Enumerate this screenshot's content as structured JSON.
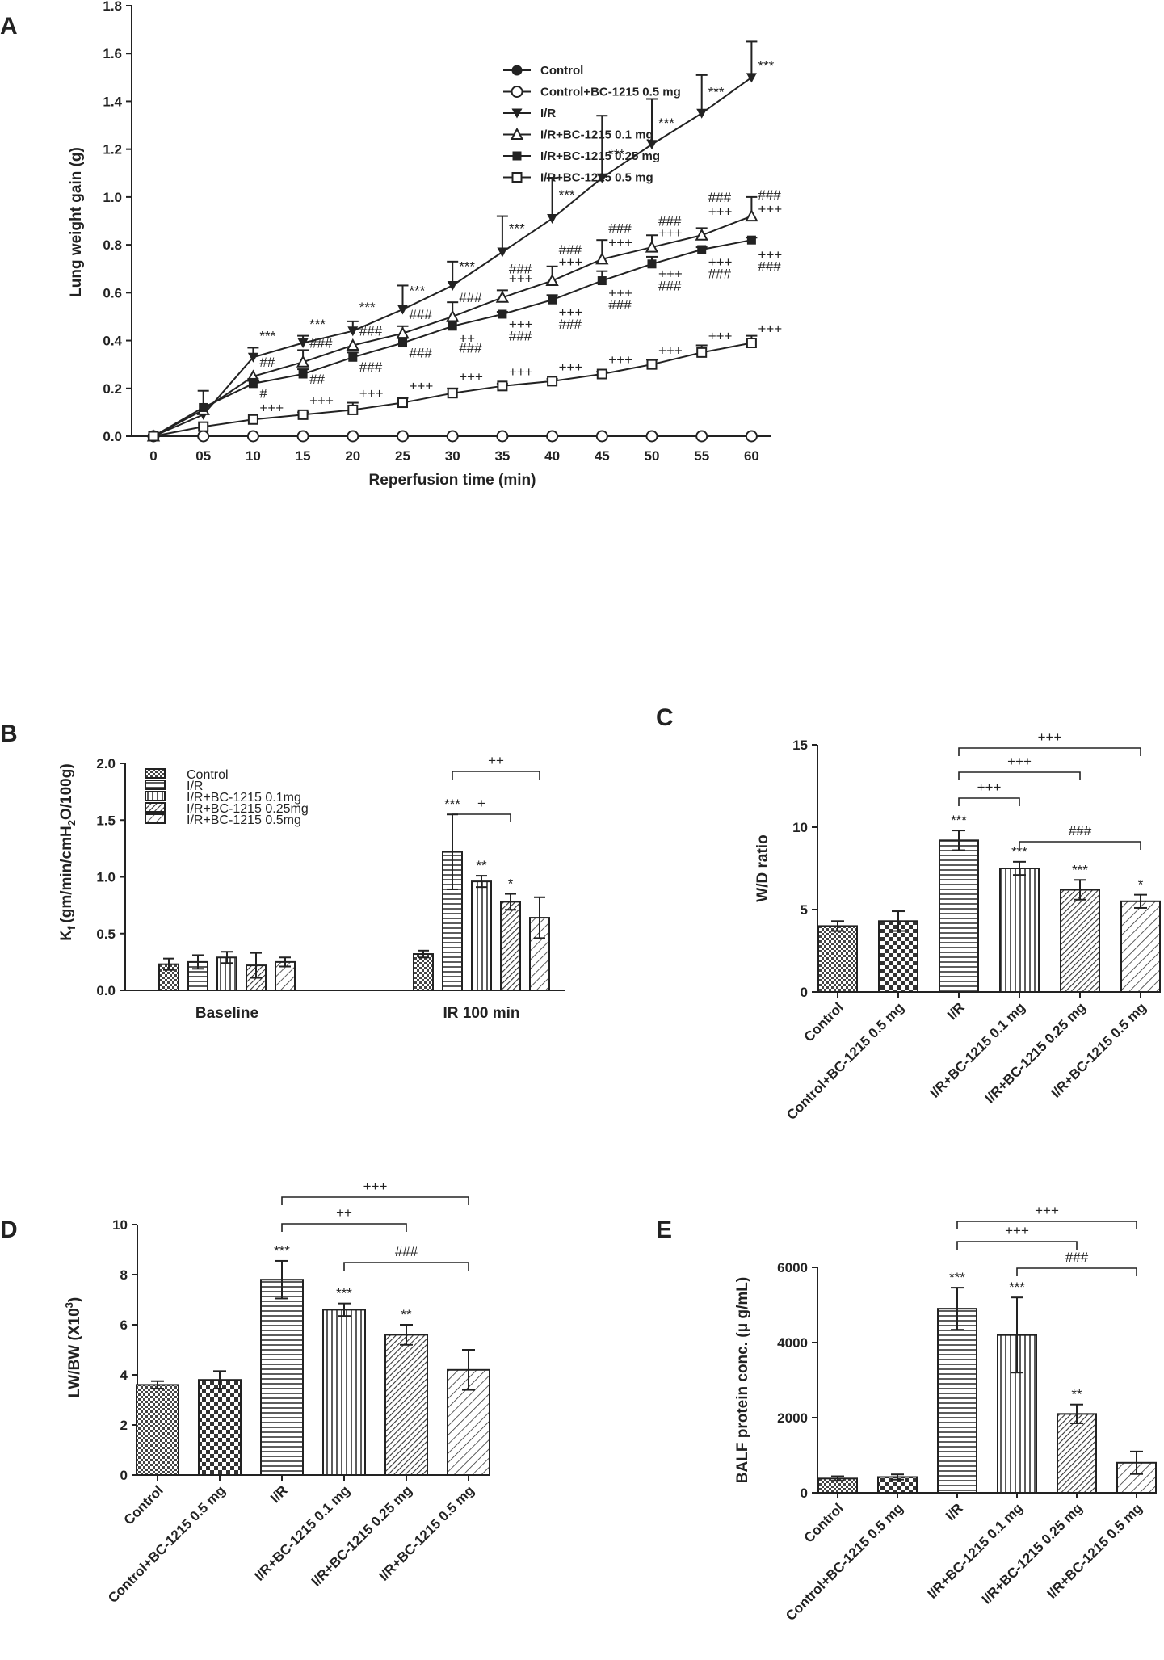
{
  "chart_data": [
    {
      "panel": "A",
      "type": "line",
      "title": "",
      "xlabel": "Reperfusion time (min)",
      "ylabel": "Lung weight gain (g)",
      "ylim": [
        0,
        1.8
      ],
      "yticks": [
        "0.0",
        "0.2",
        "0.4",
        "0.6",
        "0.8",
        "1.0",
        "1.2",
        "1.4",
        "1.6",
        "1.8"
      ],
      "x": [
        "0",
        "05",
        "10",
        "15",
        "20",
        "25",
        "30",
        "35",
        "40",
        "45",
        "50",
        "55",
        "60"
      ],
      "legend_position": "top-center",
      "series": [
        {
          "name": "Control",
          "marker": "filled-circle",
          "values": [
            0,
            0,
            0,
            0,
            0,
            0,
            0,
            0,
            0,
            0,
            0,
            0,
            0
          ],
          "errors": [
            0,
            0,
            0,
            0,
            0,
            0,
            0,
            0,
            0,
            0,
            0,
            0,
            0
          ]
        },
        {
          "name": "Control+BC-1215 0.5 mg",
          "marker": "open-circle",
          "values": [
            0,
            0,
            0,
            0,
            0,
            0,
            0,
            0,
            0,
            0,
            0,
            0,
            0
          ],
          "errors": [
            0,
            0,
            0,
            0,
            0,
            0,
            0,
            0,
            0,
            0,
            0,
            0,
            0
          ]
        },
        {
          "name": "I/R",
          "marker": "filled-triangle-down",
          "values": [
            0,
            0.09,
            0.33,
            0.39,
            0.44,
            0.53,
            0.63,
            0.77,
            0.91,
            1.08,
            1.22,
            1.35,
            1.5
          ],
          "errors": [
            0,
            0,
            0.04,
            0.03,
            0.04,
            0.1,
            0.1,
            0.15,
            0.17,
            0.26,
            0.19,
            0.16,
            0.15
          ]
        },
        {
          "name": "I/R+BC-1215 0.1 mg",
          "marker": "open-triangle-up",
          "values": [
            0,
            0.11,
            0.25,
            0.31,
            0.38,
            0.43,
            0.5,
            0.58,
            0.65,
            0.74,
            0.79,
            0.84,
            0.92
          ],
          "errors": [
            0,
            0,
            0,
            0.05,
            0,
            0.03,
            0.06,
            0.03,
            0.06,
            0.08,
            0.05,
            0.03,
            0.08
          ]
        },
        {
          "name": "I/R+BC-1215 0.25 mg",
          "marker": "filled-square",
          "values": [
            0,
            0.12,
            0.22,
            0.26,
            0.33,
            0.39,
            0.46,
            0.51,
            0.57,
            0.65,
            0.72,
            0.78,
            0.82
          ],
          "errors": [
            0,
            0.07,
            0.02,
            0.02,
            0.02,
            0.02,
            0.02,
            0.01,
            0.02,
            0.04,
            0.03,
            0.01,
            0.01
          ]
        },
        {
          "name": "I/R+BC-1215 0.5 mg",
          "marker": "open-square",
          "values": [
            0,
            0.04,
            0.07,
            0.09,
            0.11,
            0.14,
            0.18,
            0.21,
            0.23,
            0.26,
            0.3,
            0.35,
            0.39
          ],
          "errors": [
            0,
            0,
            0,
            0.01,
            0.03,
            0.02,
            0.02,
            0.01,
            0.01,
            0.01,
            0.02,
            0.03,
            0.03
          ]
        }
      ],
      "annotations": [
        {
          "text": "***",
          "x": "10",
          "y": 0.4
        },
        {
          "text": "***",
          "x": "15",
          "y": 0.45
        },
        {
          "text": "***",
          "x": "20",
          "y": 0.52
        },
        {
          "text": "***",
          "x": "25",
          "y": 0.59
        },
        {
          "text": "***",
          "x": "30",
          "y": 0.69
        },
        {
          "text": "***",
          "x": "35",
          "y": 0.85
        },
        {
          "text": "***",
          "x": "40",
          "y": 0.99
        },
        {
          "text": "***",
          "x": "45",
          "y": 1.16
        },
        {
          "text": "***",
          "x": "50",
          "y": 1.29
        },
        {
          "text": "***",
          "x": "55",
          "y": 1.42
        },
        {
          "text": "***",
          "x": "60",
          "y": 1.53
        },
        {
          "text": "##",
          "x": "10",
          "y": 0.29
        },
        {
          "text": "###",
          "x": "15",
          "y": 0.37
        },
        {
          "text": "###",
          "x": "20",
          "y": 0.42
        },
        {
          "text": "###",
          "x": "25",
          "y": 0.49
        },
        {
          "text": "###",
          "x": "30",
          "y": 0.56
        },
        {
          "text": "###",
          "x": "35",
          "y": 0.68
        },
        {
          "text": "+++",
          "x": "35",
          "y": 0.64
        },
        {
          "text": "###",
          "x": "40",
          "y": 0.76
        },
        {
          "text": "+++",
          "x": "40",
          "y": 0.71
        },
        {
          "text": "###",
          "x": "45",
          "y": 0.85
        },
        {
          "text": "+++",
          "x": "45",
          "y": 0.79
        },
        {
          "text": "###",
          "x": "50",
          "y": 0.88
        },
        {
          "text": "+++",
          "x": "50",
          "y": 0.83
        },
        {
          "text": "###",
          "x": "55",
          "y": 0.98
        },
        {
          "text": "+++",
          "x": "55",
          "y": 0.92
        },
        {
          "text": "###",
          "x": "60",
          "y": 0.99
        },
        {
          "text": "+++",
          "x": "60",
          "y": 0.93
        },
        {
          "text": "##",
          "x": "15",
          "y": 0.22
        },
        {
          "text": "###",
          "x": "20",
          "y": 0.27
        },
        {
          "text": "###",
          "x": "25",
          "y": 0.33
        },
        {
          "text": "++",
          "x": "30",
          "y": 0.39
        },
        {
          "text": "###",
          "x": "30",
          "y": 0.35
        },
        {
          "text": "+++",
          "x": "35",
          "y": 0.45
        },
        {
          "text": "###",
          "x": "35",
          "y": 0.4
        },
        {
          "text": "+++",
          "x": "40",
          "y": 0.5
        },
        {
          "text": "###",
          "x": "40",
          "y": 0.45
        },
        {
          "text": "+++",
          "x": "45",
          "y": 0.58
        },
        {
          "text": "###",
          "x": "45",
          "y": 0.53
        },
        {
          "text": "+++",
          "x": "50",
          "y": 0.66
        },
        {
          "text": "###",
          "x": "50",
          "y": 0.61
        },
        {
          "text": "+++",
          "x": "55",
          "y": 0.71
        },
        {
          "text": "###",
          "x": "55",
          "y": 0.66
        },
        {
          "text": "+++",
          "x": "60",
          "y": 0.74
        },
        {
          "text": "###",
          "x": "60",
          "y": 0.69
        },
        {
          "text": "#",
          "x": "10",
          "y": 0.16
        },
        {
          "text": "+++",
          "x": "10",
          "y": 0.1
        },
        {
          "text": "+++",
          "x": "15",
          "y": 0.13
        },
        {
          "text": "+++",
          "x": "20",
          "y": 0.16
        },
        {
          "text": "+++",
          "x": "25",
          "y": 0.19
        },
        {
          "text": "+++",
          "x": "30",
          "y": 0.23
        },
        {
          "text": "+++",
          "x": "35",
          "y": 0.25
        },
        {
          "text": "+++",
          "x": "40",
          "y": 0.27
        },
        {
          "text": "+++",
          "x": "45",
          "y": 0.3
        },
        {
          "text": "+++",
          "x": "50",
          "y": 0.34
        },
        {
          "text": "+++",
          "x": "55",
          "y": 0.4
        },
        {
          "text": "+++",
          "x": "60",
          "y": 0.43
        }
      ]
    },
    {
      "panel": "B",
      "type": "bar",
      "xlabel": "",
      "ylabel": "K_f (gm/min/cmH_2O/100g)",
      "ylim": [
        0,
        2.0
      ],
      "yticks": [
        "0.0",
        "0.5",
        "1.0",
        "1.5",
        "2.0"
      ],
      "categories": [
        "Baseline",
        "IR 100 min"
      ],
      "legend_position": "top-left",
      "series": [
        {
          "name": "Control",
          "pattern": "cross",
          "values": [
            0.23,
            0.32
          ],
          "errors": [
            0.05,
            0.03
          ]
        },
        {
          "name": "I/R",
          "pattern": "hlines",
          "values": [
            0.25,
            1.22
          ],
          "errors": [
            0.06,
            0.33
          ]
        },
        {
          "name": "I/R+BC-1215 0.1mg",
          "pattern": "vlines",
          "values": [
            0.29,
            0.96
          ],
          "errors": [
            0.05,
            0.05
          ]
        },
        {
          "name": "I/R+BC-1215 0.25mg",
          "pattern": "diag-dense",
          "values": [
            0.22,
            0.78
          ],
          "errors": [
            0.11,
            0.07
          ]
        },
        {
          "name": "I/R+BC-1215 0.5mg",
          "pattern": "diag",
          "values": [
            0.25,
            0.64
          ],
          "errors": [
            0.04,
            0.18
          ]
        }
      ],
      "annotations": [
        {
          "text": "***",
          "category": "IR 100 min",
          "series": "I/R"
        },
        {
          "text": "**",
          "category": "IR 100 min",
          "series": "I/R+BC-1215 0.1mg"
        },
        {
          "text": "*",
          "category": "IR 100 min",
          "series": "I/R+BC-1215 0.25mg"
        }
      ],
      "brackets": [
        {
          "from": "I/R",
          "to": "I/R+BC-1215 0.25mg",
          "text": "+"
        },
        {
          "from": "I/R",
          "to": "I/R+BC-1215 0.5mg",
          "text": "++"
        }
      ]
    },
    {
      "panel": "C",
      "type": "bar",
      "xlabel": "",
      "ylabel": "W/D ratio",
      "ylim": [
        0,
        15
      ],
      "yticks": [
        "0",
        "5",
        "10",
        "15"
      ],
      "categories": [
        "Control",
        "Control+BC-1215 0.5 mg",
        "I/R",
        "I/R+BC-1215 0.1 mg",
        "I/R+BC-1215 0.25 mg",
        "I/R+BC-1215 0.5 mg"
      ],
      "values": [
        4.0,
        4.3,
        9.2,
        7.5,
        6.2,
        5.5
      ],
      "errors": [
        0.3,
        0.6,
        0.6,
        0.4,
        0.6,
        0.4
      ],
      "stars": [
        "",
        "",
        "***",
        "***",
        "***",
        "*"
      ],
      "brackets": [
        {
          "from": 2,
          "to": 3,
          "text": "+++",
          "level": 1
        },
        {
          "from": 2,
          "to": 4,
          "text": "+++",
          "level": 2
        },
        {
          "from": 2,
          "to": 5,
          "text": "+++",
          "level": 3
        },
        {
          "from": 3,
          "to": 5,
          "text": "###",
          "level": 0
        }
      ]
    },
    {
      "panel": "D",
      "type": "bar",
      "xlabel": "",
      "ylabel": "LW/BW (X10^3)",
      "ylim": [
        0,
        10
      ],
      "yticks": [
        "0",
        "2",
        "4",
        "6",
        "8",
        "10"
      ],
      "categories": [
        "Control",
        "Control+BC-1215 0.5 mg",
        "I/R",
        "I/R+BC-1215 0.1 mg",
        "I/R+BC-1215 0.25 mg",
        "I/R+BC-1215 0.5 mg"
      ],
      "values": [
        3.6,
        3.8,
        7.8,
        6.6,
        5.6,
        4.2
      ],
      "errors": [
        0.15,
        0.35,
        0.75,
        0.25,
        0.4,
        0.8
      ],
      "stars": [
        "",
        "",
        "***",
        "***",
        "**",
        ""
      ],
      "brackets": [
        {
          "from": 2,
          "to": 4,
          "text": "++",
          "level": 2
        },
        {
          "from": 2,
          "to": 5,
          "text": "+++",
          "level": 3
        },
        {
          "from": 3,
          "to": 5,
          "text": "###",
          "level": 1
        }
      ]
    },
    {
      "panel": "E",
      "type": "bar",
      "xlabel": "",
      "ylabel": "BALF protein conc. (μ g/mL)",
      "ylim": [
        0,
        6000
      ],
      "yticks": [
        "0",
        "2000",
        "4000",
        "6000"
      ],
      "categories": [
        "Control",
        "Control+BC-1215 0.5 mg",
        "I/R",
        "I/R+BC-1215 0.1 mg",
        "I/R+BC-1215 0.25 mg",
        "I/R+BC-1215 0.5 mg"
      ],
      "values": [
        380,
        420,
        4900,
        4200,
        2100,
        800
      ],
      "errors": [
        60,
        70,
        560,
        1000,
        250,
        300
      ],
      "stars": [
        "",
        "",
        "***",
        "***",
        "**",
        ""
      ],
      "brackets": [
        {
          "from": 2,
          "to": 4,
          "text": "+++",
          "level": 2
        },
        {
          "from": 2,
          "to": 5,
          "text": "+++",
          "level": 3
        },
        {
          "from": 3,
          "to": 5,
          "text": "###",
          "level": 1
        }
      ]
    }
  ],
  "labels": {
    "panel_a": "A",
    "panel_b": "B",
    "panel_c": "C",
    "panel_d": "D",
    "panel_e": "E",
    "b_ylabel_k": "K",
    "b_ylabel_sub": "f",
    "b_ylabel_rest": "(gm/min/cmH",
    "b_ylabel_sub2": "2",
    "b_ylabel_end": "O/100g)",
    "d_ylabel_main": "LW/BW (X10",
    "d_ylabel_sup": "3",
    "d_ylabel_end": ")"
  }
}
